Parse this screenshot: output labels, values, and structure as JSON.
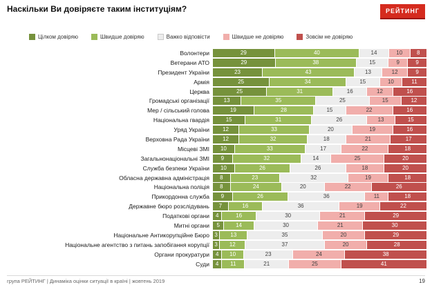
{
  "header": {
    "title": "Наскільки Ви довіряєте таким інституціям?",
    "logo_text": "РЕЙТИНГ"
  },
  "legend": [
    "Цілком довіряю",
    "Швидше довіряю",
    "Важко відповісти",
    "Швидше не довіряю",
    "Зовсім не довіряю"
  ],
  "colors": {
    "series": [
      "#76923c",
      "#9bbb59",
      "#ededed",
      "#f1aeab",
      "#c0504d"
    ],
    "series_text": [
      "#ffffff",
      "#ffffff",
      "#404040",
      "#404040",
      "#ffffff"
    ],
    "accent_red": "#d52b1e"
  },
  "chart_data": {
    "type": "bar",
    "stacked": true,
    "orientation": "horizontal",
    "unit": "percent",
    "title": "Наскільки Ви довіряєте таким інституціям?",
    "legend_position": "top",
    "xlim": [
      0,
      100
    ],
    "grid": false,
    "categories": [
      "Волонтери",
      "Ветерани АТО",
      "Президент України",
      "Армія",
      "Церква",
      "Громадські організації",
      "Мер / сільський голова",
      "Національна гвардія",
      "Уряд України",
      "Верховна Рада України",
      "Місцеві ЗМІ",
      "Загальнонаціональні ЗМІ",
      "Служба безпеки України",
      "Обласна державна адміністрація",
      "Національна поліція",
      "Прикордонна служба",
      "Державне бюро розслідувань",
      "Податкові органи",
      "Митні органи",
      "Національне Антикорупційне Бюро",
      "Національне агентство з питань запобігання корупції",
      "Органи прокуратури",
      "Суди"
    ],
    "series": [
      {
        "name": "Цілком довіряю",
        "values": [
          29,
          29,
          23,
          25,
          25,
          13,
          19,
          15,
          12,
          12,
          10,
          9,
          10,
          8,
          8,
          9,
          7,
          4,
          5,
          3,
          3,
          4,
          4
        ]
      },
      {
        "name": "Швидше довіряю",
        "values": [
          40,
          38,
          43,
          34,
          31,
          35,
          28,
          31,
          33,
          32,
          33,
          32,
          26,
          23,
          24,
          26,
          16,
          16,
          14,
          13,
          12,
          10,
          11
        ]
      },
      {
        "name": "Важко відповісти",
        "values": [
          14,
          15,
          13,
          15,
          16,
          25,
          15,
          26,
          20,
          18,
          17,
          14,
          26,
          32,
          20,
          36,
          36,
          30,
          30,
          35,
          37,
          23,
          21
        ]
      },
      {
        "name": "Швидше не довіряю",
        "values": [
          10,
          9,
          12,
          10,
          12,
          15,
          22,
          13,
          19,
          21,
          22,
          25,
          18,
          19,
          22,
          11,
          19,
          21,
          21,
          20,
          20,
          24,
          25
        ]
      },
      {
        "name": "Зовсім не довіряю",
        "values": [
          8,
          9,
          9,
          11,
          16,
          12,
          16,
          15,
          16,
          17,
          18,
          20,
          20,
          18,
          26,
          18,
          22,
          29,
          30,
          29,
          28,
          38,
          41
        ]
      }
    ]
  },
  "footer": {
    "left": "група РЕЙТИНГ  |  Динаміка оцінки ситуації в країні  |  жовтень 2019",
    "page": "19"
  }
}
